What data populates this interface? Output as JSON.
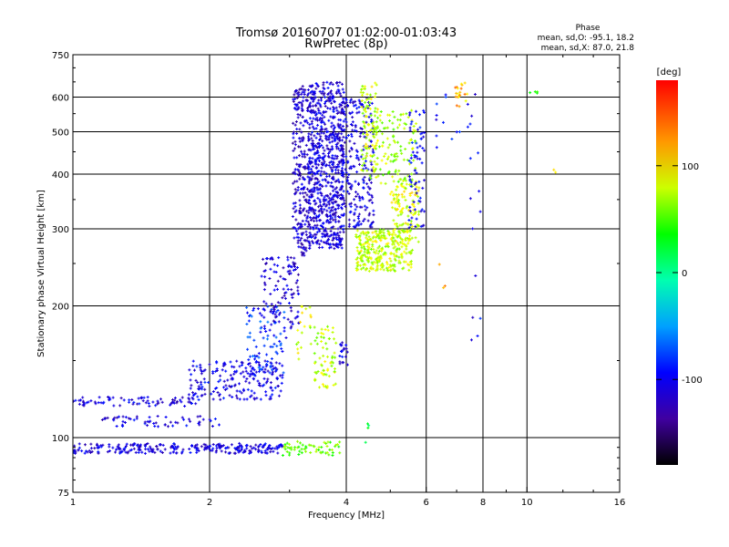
{
  "chart_data": {
    "type": "scatter",
    "title": "Tromsø 20160707 01:02:00-01:03:43",
    "subtitle": "RwPretec (8p)",
    "xlabel": "Frequency [MHz]",
    "ylabel": "Stationary phase Virtual Height [km]",
    "x_scale": "log",
    "y_scale": "log",
    "xlim": [
      1,
      16
    ],
    "ylim": [
      75,
      750
    ],
    "x_ticks": [
      1,
      2,
      4,
      6,
      8,
      10,
      16
    ],
    "x_tick_labels": [
      "1",
      "2",
      "4",
      "6",
      "8",
      "10",
      "16"
    ],
    "y_ticks": [
      75,
      100,
      200,
      300,
      400,
      500,
      600,
      750
    ],
    "y_tick_labels": [
      "75",
      "100",
      "200",
      "300",
      "400",
      "500",
      "600",
      "750"
    ],
    "grid": true,
    "phase_stats": {
      "title": "Phase",
      "line1": "mean, sd,O: -95.1, 18.2",
      "line2": "mean, sd,X: 87.0, 21.8"
    },
    "colorbar": {
      "label": "[deg]",
      "range": [
        -180,
        180
      ],
      "ticks": [
        100,
        0,
        -100
      ],
      "tick_labels": [
        "100",
        "0",
        "-100"
      ]
    },
    "clusters": [
      {
        "x_range": [
          1.0,
          2.9
        ],
        "y_range": [
          92,
          97
        ],
        "phase": -110,
        "count": 260
      },
      {
        "x_range": [
          2.9,
          3.9
        ],
        "y_range": [
          91,
          98
        ],
        "phase": 70,
        "count": 60
      },
      {
        "x_range": [
          1.0,
          1.9
        ],
        "y_range": [
          118,
          124
        ],
        "phase": -110,
        "count": 80
      },
      {
        "x_range": [
          1.15,
          2.1
        ],
        "y_range": [
          106,
          112
        ],
        "phase": -110,
        "count": 60
      },
      {
        "x_range": [
          1.8,
          2.9
        ],
        "y_range": [
          122,
          150
        ],
        "phase": -105,
        "count": 200
      },
      {
        "x_range": [
          2.4,
          2.95
        ],
        "y_range": [
          140,
          200
        ],
        "phase": -85,
        "count": 90
      },
      {
        "x_range": [
          2.6,
          3.15
        ],
        "y_range": [
          175,
          260
        ],
        "phase": -115,
        "count": 110
      },
      {
        "x_range": [
          3.05,
          3.3
        ],
        "y_range": [
          260,
          640
        ],
        "phase": -120,
        "count": 220
      },
      {
        "x_range": [
          3.3,
          3.95
        ],
        "y_range": [
          270,
          650
        ],
        "phase": -112,
        "count": 750
      },
      {
        "x_range": [
          3.9,
          4.6
        ],
        "y_range": [
          300,
          600
        ],
        "phase": -110,
        "count": 240
      },
      {
        "x_range": [
          4.3,
          4.7
        ],
        "y_range": [
          390,
          650
        ],
        "phase": 95,
        "count": 100
      },
      {
        "x_range": [
          4.2,
          5.6
        ],
        "y_range": [
          240,
          300
        ],
        "phase": 95,
        "count": 300
      },
      {
        "x_range": [
          5.0,
          5.8
        ],
        "y_range": [
          280,
          380
        ],
        "phase": 100,
        "count": 120
      },
      {
        "x_range": [
          4.6,
          5.7
        ],
        "y_range": [
          380,
          560
        ],
        "phase": 85,
        "count": 120
      },
      {
        "x_range": [
          5.5,
          5.95
        ],
        "y_range": [
          300,
          560
        ],
        "phase": -100,
        "count": 70
      },
      {
        "x_range": [
          3.4,
          3.8
        ],
        "y_range": [
          130,
          180
        ],
        "phase": 95,
        "count": 70
      },
      {
        "x_range": [
          3.1,
          3.35
        ],
        "y_range": [
          150,
          200
        ],
        "phase": 100,
        "count": 20
      },
      {
        "x_range": [
          3.85,
          4.05
        ],
        "y_range": [
          145,
          165
        ],
        "phase": -110,
        "count": 20
      },
      {
        "x_range": [
          6.9,
          7.4
        ],
        "y_range": [
          570,
          660
        ],
        "phase": 130,
        "count": 20
      },
      {
        "x_range": [
          6.3,
          7.7
        ],
        "y_range": [
          450,
          630
        ],
        "phase": -100,
        "count": 15
      },
      {
        "x_range": [
          7.5,
          7.9
        ],
        "y_range": [
          160,
          600
        ],
        "phase": -100,
        "count": 12
      },
      {
        "x_range": [
          10.0,
          10.6
        ],
        "y_range": [
          610,
          625
        ],
        "phase": 40,
        "count": 4
      },
      {
        "x_range": [
          11.3,
          11.6
        ],
        "y_range": [
          400,
          410
        ],
        "phase": 130,
        "count": 2
      },
      {
        "x_range": [
          6.4,
          6.6
        ],
        "y_range": [
          200,
          290
        ],
        "phase": 130,
        "count": 3
      },
      {
        "x_range": [
          4.4,
          4.6
        ],
        "y_range": [
          95,
          108
        ],
        "phase": 20,
        "count": 4
      }
    ]
  }
}
